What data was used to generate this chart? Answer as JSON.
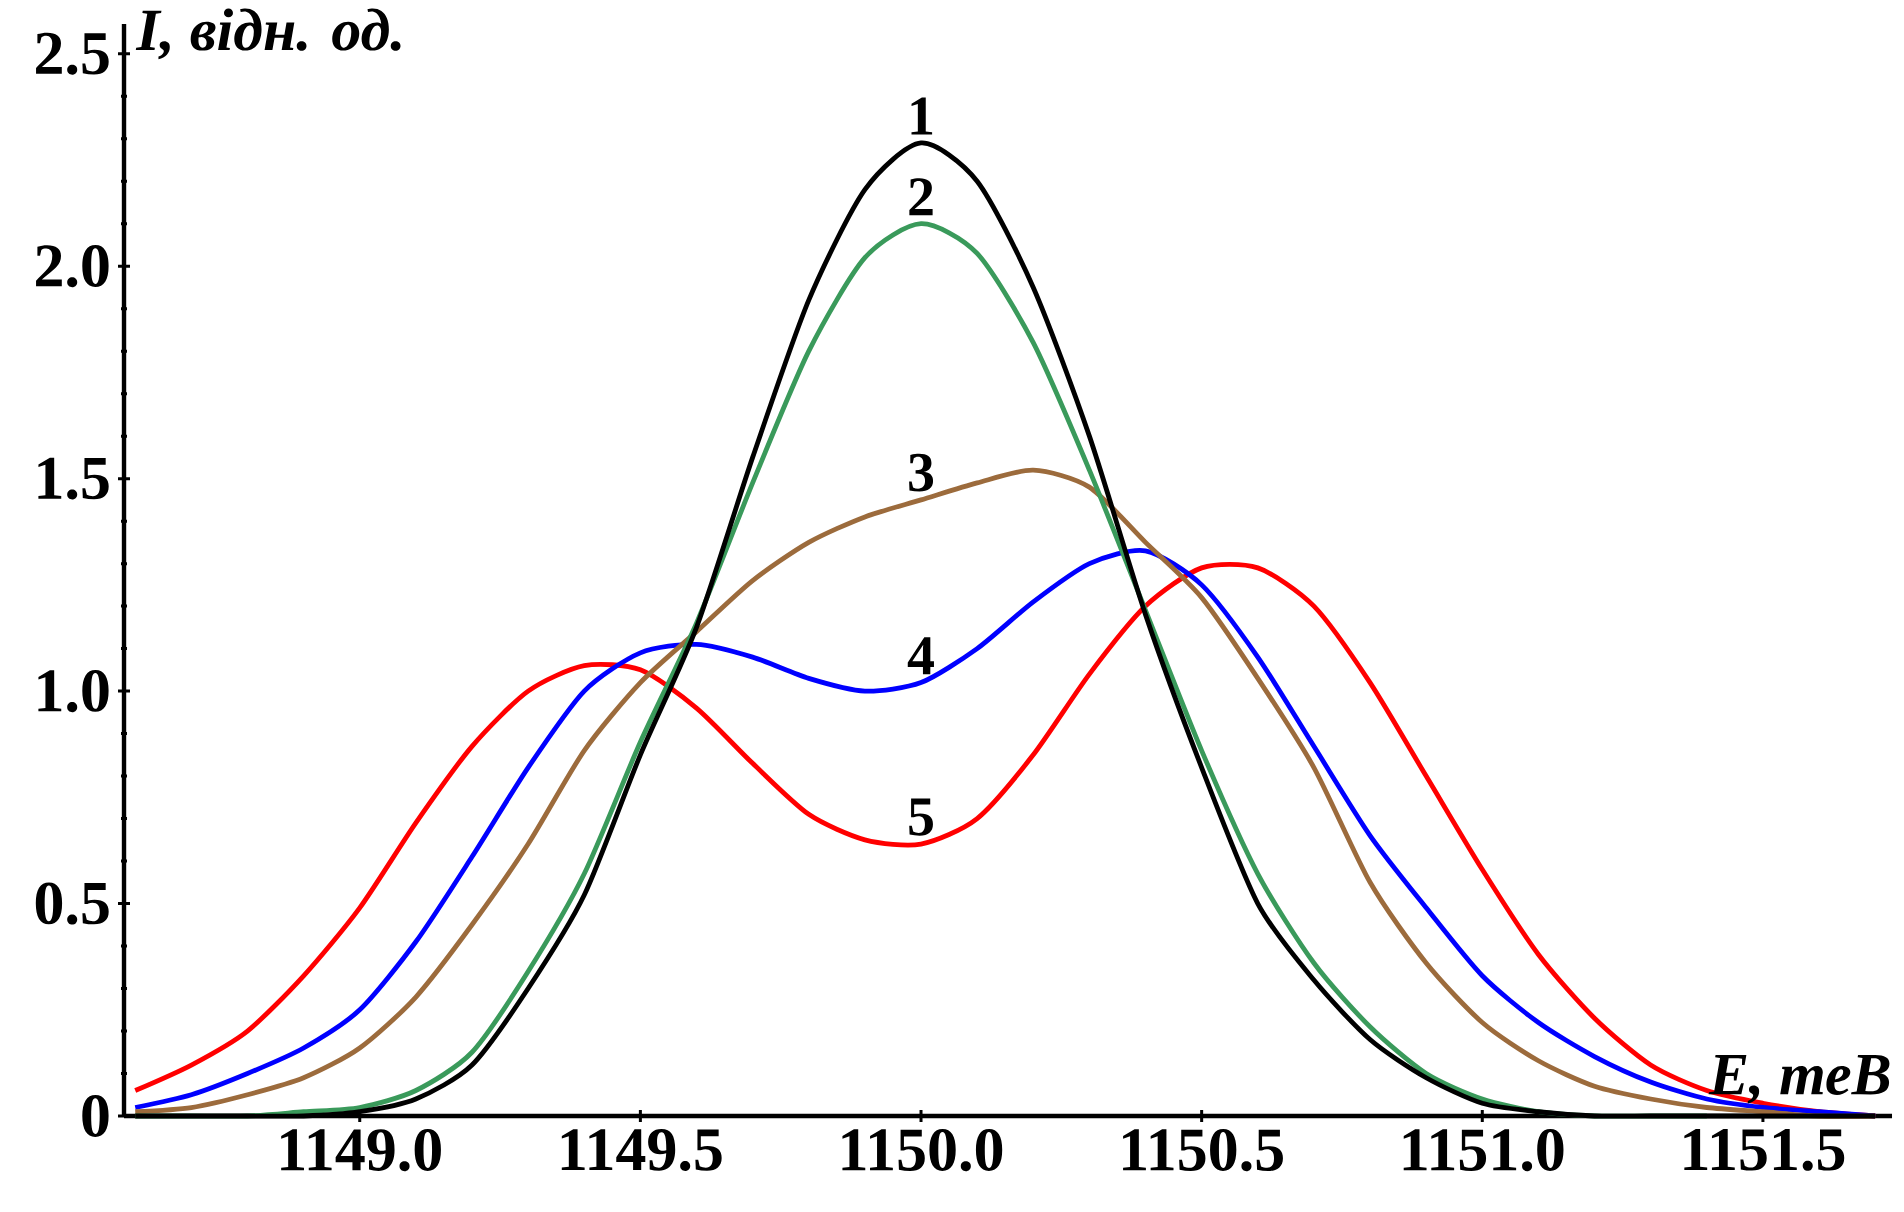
{
  "chart_data": {
    "type": "line",
    "xlabel": "E, теВ",
    "ylabel": "I, відн. од.",
    "x": [
      1148.6,
      1148.7,
      1148.8,
      1148.9,
      1149.0,
      1149.1,
      1149.2,
      1149.3,
      1149.4,
      1149.5,
      1149.6,
      1149.7,
      1149.8,
      1149.9,
      1150.0,
      1150.1,
      1150.2,
      1150.3,
      1150.4,
      1150.5,
      1150.6,
      1150.7,
      1150.8,
      1150.9,
      1151.0,
      1151.1,
      1151.2,
      1151.3,
      1151.4,
      1151.5,
      1151.6,
      1151.7
    ],
    "series": [
      {
        "name": "1",
        "color": "#000000",
        "values": [
          0,
          0,
          0,
          0,
          0.01,
          0.04,
          0.12,
          0.3,
          0.52,
          0.85,
          1.15,
          1.55,
          1.92,
          2.18,
          2.29,
          2.2,
          1.95,
          1.6,
          1.18,
          0.82,
          0.5,
          0.32,
          0.18,
          0.09,
          0.03,
          0.01,
          0,
          0,
          0,
          0,
          0,
          0
        ]
      },
      {
        "name": "2",
        "color": "#3a9a5b",
        "values": [
          0,
          0,
          0,
          0.01,
          0.02,
          0.06,
          0.15,
          0.34,
          0.57,
          0.88,
          1.16,
          1.49,
          1.8,
          2.02,
          2.1,
          2.03,
          1.82,
          1.52,
          1.19,
          0.86,
          0.57,
          0.36,
          0.21,
          0.1,
          0.04,
          0.01,
          0,
          0,
          0,
          null,
          null,
          null
        ]
      },
      {
        "name": "3",
        "color": "#9c6b3c",
        "values": [
          0.01,
          0.02,
          0.05,
          0.09,
          0.16,
          0.28,
          0.45,
          0.64,
          0.86,
          1.02,
          1.14,
          1.26,
          1.35,
          1.41,
          1.45,
          1.49,
          1.52,
          1.48,
          1.35,
          1.22,
          1.03,
          0.82,
          0.55,
          0.36,
          0.22,
          0.13,
          0.07,
          0.04,
          0.02,
          0.01,
          0,
          0
        ]
      },
      {
        "name": "4",
        "color": "#0000ff",
        "values": [
          0.02,
          0.05,
          0.1,
          0.16,
          0.25,
          0.41,
          0.61,
          0.82,
          1.0,
          1.09,
          1.11,
          1.08,
          1.03,
          1.0,
          1.02,
          1.1,
          1.21,
          1.3,
          1.33,
          1.25,
          1.08,
          0.87,
          0.66,
          0.49,
          0.33,
          0.22,
          0.14,
          0.08,
          0.04,
          0.02,
          0.01,
          0
        ]
      },
      {
        "name": "5",
        "color": "#ff0000",
        "values": [
          0.06,
          0.12,
          0.2,
          0.33,
          0.49,
          0.69,
          0.87,
          1.0,
          1.06,
          1.05,
          0.96,
          0.83,
          0.71,
          0.65,
          0.64,
          0.7,
          0.85,
          1.04,
          1.2,
          1.29,
          1.29,
          1.2,
          1.02,
          0.8,
          0.58,
          0.38,
          0.23,
          0.12,
          0.06,
          0.03,
          0.01,
          0
        ]
      }
    ],
    "xlim": [
      1148.58,
      1151.73
    ],
    "ylim": [
      0,
      2.57
    ],
    "xticks": [
      {
        "value": 1149.0,
        "label": "1149.0"
      },
      {
        "value": 1149.5,
        "label": "1149.5"
      },
      {
        "value": 1150.0,
        "label": "1150.0"
      },
      {
        "value": 1150.5,
        "label": "1150.5"
      },
      {
        "value": 1151.0,
        "label": "1151.0"
      },
      {
        "value": 1151.5,
        "label": "1151.5"
      }
    ],
    "yticks": [
      0,
      0.5,
      {
        "value": 1.0,
        "label": "1.0"
      },
      1.5,
      {
        "value": 2.0,
        "label": "2.0"
      },
      2.5
    ]
  }
}
